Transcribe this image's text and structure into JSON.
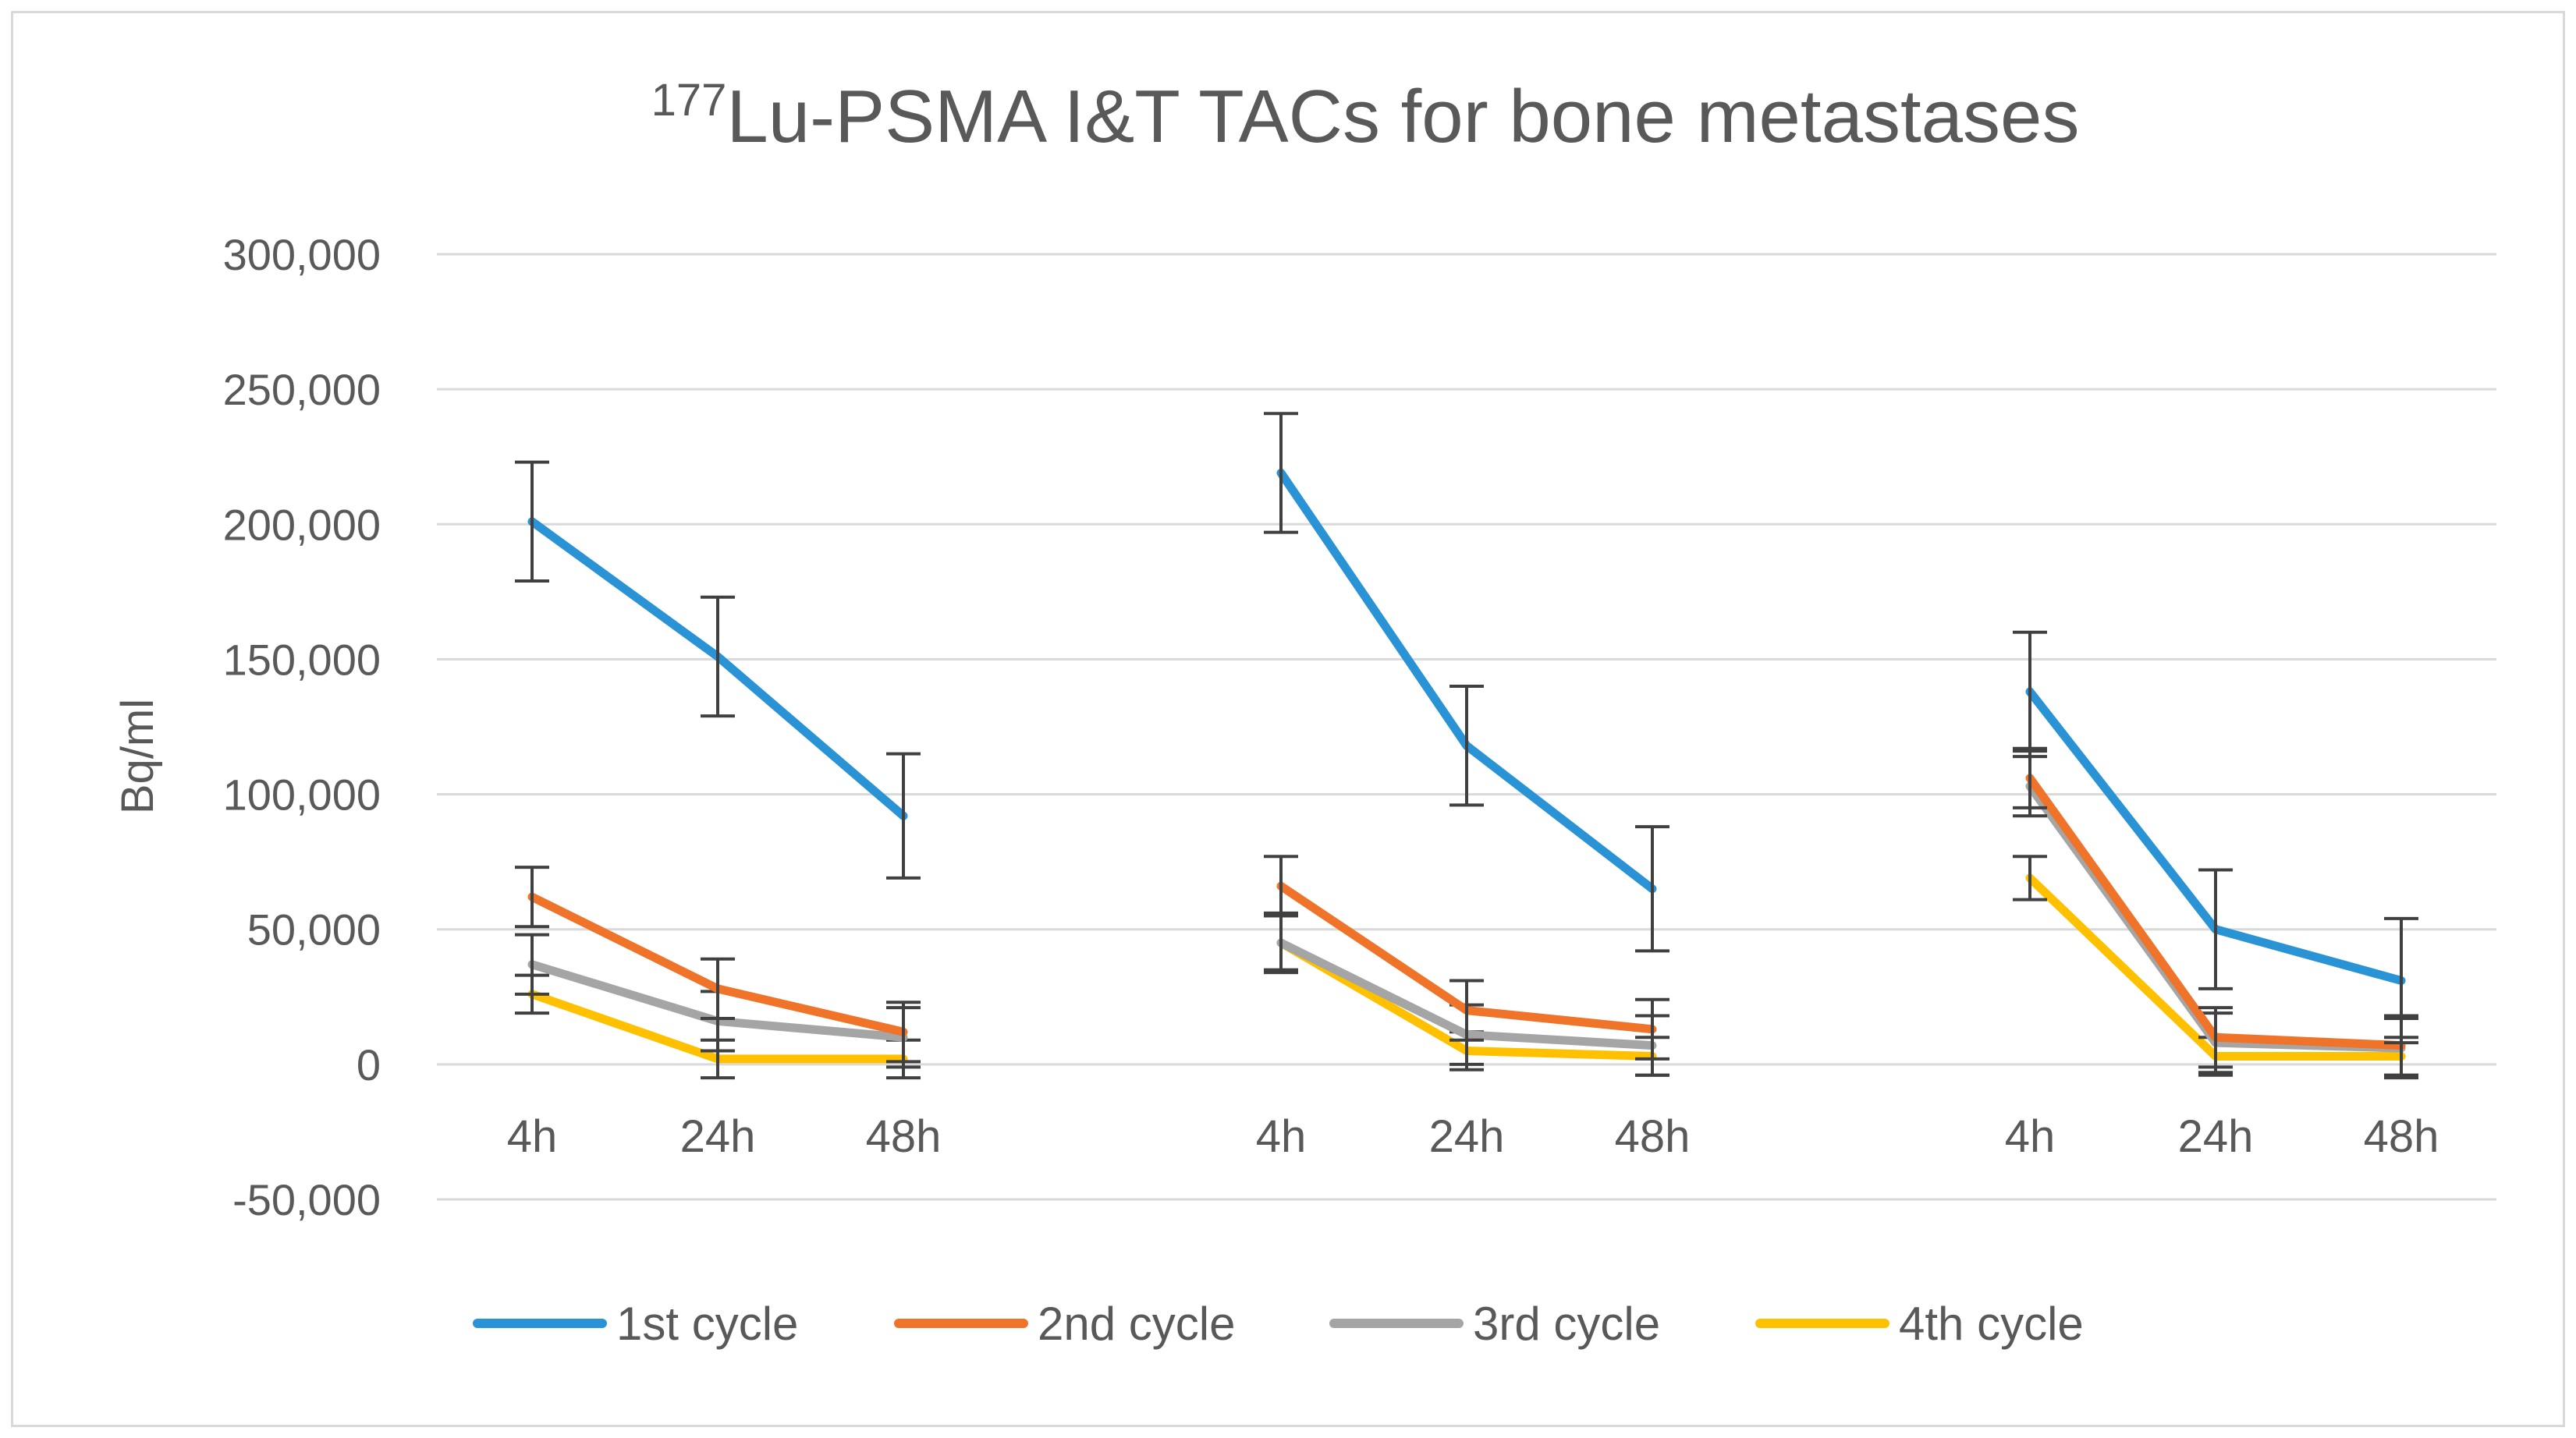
{
  "chart_data": {
    "type": "line",
    "title": {
      "superscript": "177",
      "text": "Lu-PSMA I&T TACs for bone metastases"
    },
    "ylabel": "Bq/ml",
    "xlabel": "",
    "ylim": [
      -50000,
      300000
    ],
    "yticks": [
      -50000,
      0,
      50000,
      100000,
      150000,
      200000,
      250000,
      300000
    ],
    "ytick_labels": [
      "-50,000",
      "0",
      "50,000",
      "100,000",
      "150,000",
      "200,000",
      "250,000",
      "300,000"
    ],
    "grid": true,
    "legend_position": "bottom",
    "groups": [
      {
        "categories": [
          "4h",
          "24h",
          "48h"
        ]
      },
      {
        "categories": [
          "4h",
          "24h",
          "48h"
        ]
      },
      {
        "categories": [
          "4h",
          "24h",
          "48h"
        ]
      }
    ],
    "series": [
      {
        "name": "1st cycle",
        "color": "#2a93d5",
        "values": [
          [
            201000,
            151000,
            92000
          ],
          [
            219000,
            118000,
            65000
          ],
          [
            138000,
            50000,
            31000
          ]
        ],
        "errors": [
          [
            22000,
            22000,
            23000
          ],
          [
            22000,
            22000,
            23000
          ],
          [
            22000,
            22000,
            23000
          ]
        ]
      },
      {
        "name": "2nd cycle",
        "color": "#f0732a",
        "values": [
          [
            62000,
            28000,
            12000
          ],
          [
            66000,
            20000,
            13000
          ],
          [
            106000,
            10000,
            7000
          ]
        ],
        "errors": [
          [
            11000,
            11000,
            11000
          ],
          [
            11000,
            11000,
            11000
          ],
          [
            11000,
            11000,
            11000
          ]
        ]
      },
      {
        "name": "3rd cycle",
        "color": "#a5a5a5",
        "values": [
          [
            37000,
            16000,
            10000
          ],
          [
            45000,
            11000,
            7000
          ],
          [
            103000,
            8000,
            6000
          ]
        ],
        "errors": [
          [
            11000,
            11000,
            11000
          ],
          [
            11000,
            11000,
            11000
          ],
          [
            11000,
            11000,
            11000
          ]
        ]
      },
      {
        "name": "4th cycle",
        "color": "#ffc000",
        "values": [
          [
            26000,
            2000,
            2000
          ],
          [
            45000,
            5000,
            3000
          ],
          [
            69000,
            3000,
            3000
          ]
        ],
        "errors": [
          [
            7000,
            7000,
            7000
          ],
          [
            10000,
            7000,
            7000
          ],
          [
            8000,
            7000,
            7000
          ]
        ]
      }
    ]
  }
}
